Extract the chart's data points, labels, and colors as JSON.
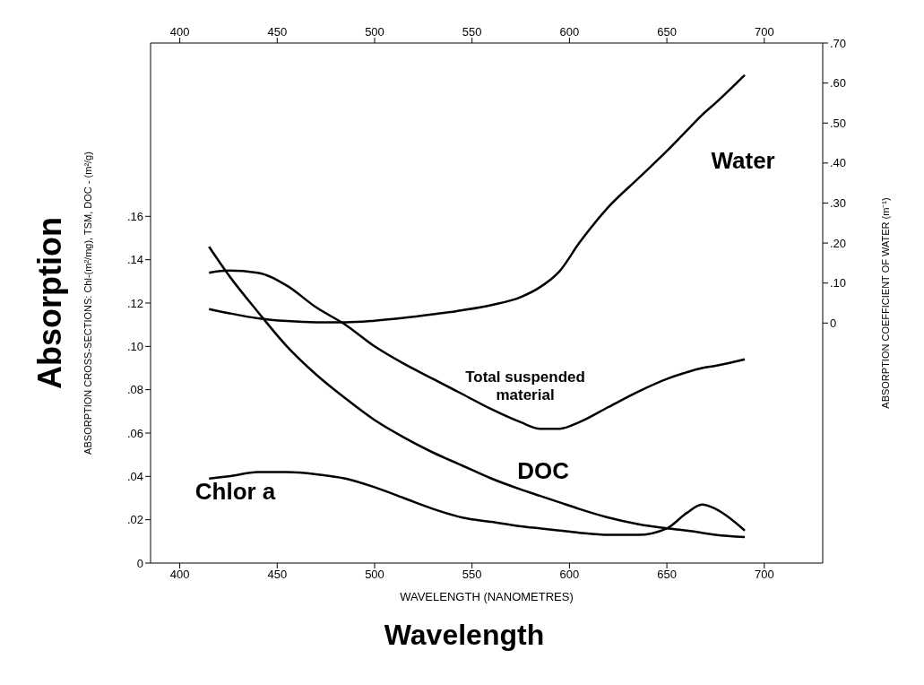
{
  "chart_data": {
    "type": "line",
    "xlabel": "WAVELENGTH (NANOMETRES)",
    "ylabel": "ABSORPTION CROSS-SECTIONS: Chl-(m²/mg), TSM, DOC - (m²/g)",
    "y2label": "ABSORPTION COEFFICIENT OF WATER (m⁻¹)",
    "annotations": [
      "Absorption",
      "Wavelength"
    ],
    "x": [
      415,
      425,
      440,
      455,
      470,
      485,
      500,
      515,
      530,
      545,
      560,
      575,
      585,
      595,
      605,
      620,
      635,
      650,
      660,
      668,
      675,
      690
    ],
    "series": [
      {
        "name": "Water",
        "color": "#000000",
        "axis": "y2",
        "values": [
          0.035,
          0.025,
          0.012,
          0.005,
          0.002,
          0.002,
          0.006,
          0.013,
          0.022,
          0.032,
          0.045,
          0.065,
          0.09,
          0.13,
          0.2,
          0.29,
          0.36,
          0.43,
          0.48,
          0.52,
          0.55,
          0.62
        ]
      },
      {
        "name": "Total suspended material",
        "color": "#000000",
        "values": [
          0.134,
          0.135,
          0.134,
          0.128,
          0.118,
          0.11,
          0.1,
          0.092,
          0.085,
          0.078,
          0.071,
          0.065,
          0.062,
          0.062,
          0.065,
          0.072,
          0.079,
          0.085,
          0.088,
          0.09,
          0.091,
          0.094
        ]
      },
      {
        "name": "DOC",
        "color": "#000000",
        "values": [
          0.146,
          0.133,
          0.116,
          0.1,
          0.087,
          0.076,
          0.066,
          0.058,
          0.051,
          0.045,
          0.039,
          0.034,
          0.031,
          0.028,
          0.025,
          0.021,
          0.018,
          0.016,
          0.015,
          0.014,
          0.013,
          0.012
        ]
      },
      {
        "name": "Chlor a",
        "color": "#000000",
        "values": [
          0.039,
          0.04,
          0.042,
          0.042,
          0.041,
          0.039,
          0.035,
          0.03,
          0.025,
          0.021,
          0.019,
          0.017,
          0.016,
          0.015,
          0.014,
          0.013,
          0.013,
          0.016,
          0.023,
          0.027,
          0.025,
          0.015
        ]
      }
    ],
    "xlim": [
      385,
      730
    ],
    "xticks": [
      400,
      450,
      500,
      550,
      600,
      650,
      700
    ],
    "x2lim": [
      385,
      730
    ],
    "x2ticks": [
      400,
      450,
      500,
      550,
      600,
      650,
      700
    ],
    "ylim": [
      0,
      0.24
    ],
    "yticks": [
      0,
      {
        "value": 0.02,
        "label": ".02"
      },
      {
        "value": 0.04,
        "label": ".04"
      },
      {
        "value": 0.06,
        "label": ".06"
      },
      {
        "value": 0.08,
        "label": ".08"
      },
      {
        "value": 0.1,
        "label": ".10"
      },
      {
        "value": 0.12,
        "label": ".12"
      },
      {
        "value": 0.14,
        "label": ".14"
      },
      {
        "value": 0.16,
        "label": ".16"
      }
    ],
    "y2lim": [
      -0.6,
      0.7
    ],
    "y2ticks": [
      0,
      {
        "value": 0.1,
        "label": ".10"
      },
      {
        "value": 0.2,
        "label": ".20"
      },
      {
        "value": 0.3,
        "label": ".30"
      },
      {
        "value": 0.4,
        "label": ".40"
      },
      {
        "value": 0.5,
        "label": ".50"
      },
      {
        "value": 0.6,
        "label": ".60"
      },
      {
        "value": 0.7,
        "label": ".70"
      }
    ],
    "grid": false,
    "marker": "none",
    "line_style": "solid"
  }
}
